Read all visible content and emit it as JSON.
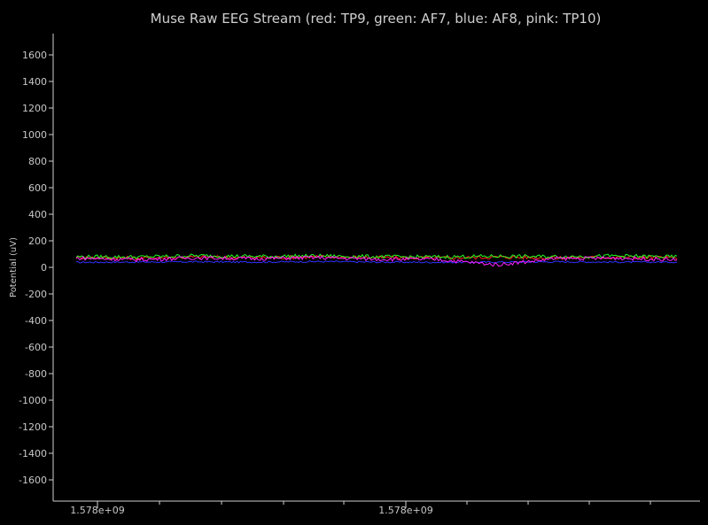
{
  "chart_data": {
    "type": "line",
    "title": "Muse Raw EEG Stream (red: TP9, green: AF7, blue: AF8, pink: TP10)",
    "xlabel": "",
    "ylabel": "Potential (uV)",
    "ylim": [
      -1700,
      1700
    ],
    "yticks": [
      1600,
      1400,
      1200,
      1000,
      800,
      600,
      400,
      200,
      0,
      -200,
      -400,
      -600,
      -800,
      -1000,
      -1200,
      -1400,
      -1600
    ],
    "xtick_labels": [
      "1.578e+09",
      "1.578e+09"
    ],
    "grid": false,
    "series": [
      {
        "name": "TP9",
        "color": "#ff2020",
        "x": [
          0,
          10,
          20,
          30,
          40,
          50,
          60,
          70,
          80,
          90,
          100
        ],
        "y": [
          75,
          70,
          78,
          72,
          80,
          74,
          71,
          77,
          73,
          76,
          72
        ]
      },
      {
        "name": "AF7",
        "color": "#20ff20",
        "x": [
          0,
          10,
          20,
          30,
          40,
          50,
          60,
          70,
          80,
          90,
          100
        ],
        "y": [
          80,
          78,
          88,
          82,
          86,
          80,
          78,
          84,
          80,
          86,
          78
        ]
      },
      {
        "name": "AF8",
        "color": "#3030ff",
        "x": [
          0,
          10,
          20,
          30,
          40,
          50,
          60,
          70,
          80,
          90,
          100
        ],
        "y": [
          38,
          40,
          42,
          40,
          44,
          40,
          38,
          40,
          42,
          40,
          40
        ]
      },
      {
        "name": "TP10",
        "color": "#ff20ff",
        "x": [
          0,
          10,
          20,
          30,
          40,
          50,
          60,
          70,
          80,
          90,
          100
        ],
        "y": [
          70,
          58,
          72,
          65,
          74,
          62,
          60,
          20,
          66,
          70,
          58
        ]
      }
    ]
  }
}
